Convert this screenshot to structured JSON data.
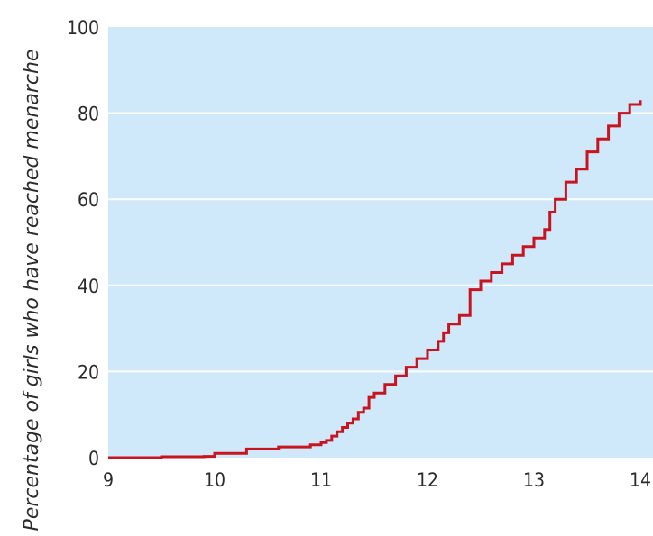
{
  "chart_data": {
    "type": "line",
    "step": true,
    "title": "",
    "xlabel": "",
    "ylabel": "Percentage of girls who have reached menarche",
    "xlim": [
      9,
      14
    ],
    "ylim": [
      0,
      100
    ],
    "xticks": [
      "9",
      "10",
      "11",
      "12",
      "13",
      "14"
    ],
    "yticks": [
      "0",
      "20",
      "40",
      "60",
      "80",
      "100"
    ],
    "grid": true,
    "colors": {
      "plot_background": "#cfe9fa",
      "line": "#c8141e",
      "grid": "#ffffff",
      "text": "#2b2b2b"
    },
    "series": [
      {
        "x": [
          9.0,
          9.5,
          9.9,
          10.0,
          10.3,
          10.6,
          10.9,
          11.0,
          11.05,
          11.1,
          11.15,
          11.2,
          11.25,
          11.3,
          11.35,
          11.4,
          11.45,
          11.5,
          11.6,
          11.7,
          11.8,
          11.9,
          12.0,
          12.1,
          12.15,
          12.2,
          12.3,
          12.4,
          12.5,
          12.6,
          12.7,
          12.8,
          12.9,
          13.0,
          13.1,
          13.15,
          13.2,
          13.3,
          13.4,
          13.5,
          13.6,
          13.7,
          13.8,
          13.9,
          14.0
        ],
        "y": [
          0,
          0.2,
          0.3,
          1,
          2,
          2.5,
          3,
          3.5,
          4,
          5,
          6,
          7,
          8,
          9,
          10.5,
          11.5,
          14,
          15,
          17,
          19,
          21,
          23,
          25,
          27,
          29,
          31,
          33,
          39,
          41,
          43,
          45,
          47,
          49,
          51,
          53,
          57,
          60,
          64,
          67,
          71,
          74,
          77,
          80,
          82,
          83
        ]
      }
    ]
  }
}
